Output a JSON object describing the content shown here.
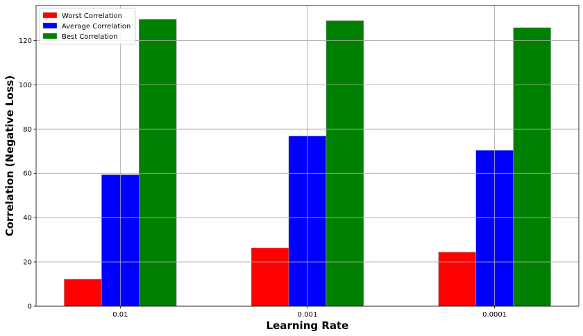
{
  "chart_data": {
    "type": "bar",
    "categories": [
      "0.01",
      "0.001",
      "0.0001"
    ],
    "series": [
      {
        "name": "Worst Correlation",
        "color": "#ff0000",
        "values": [
          12.2,
          26.3,
          24.4
        ]
      },
      {
        "name": "Average Correlation",
        "color": "#0000ff",
        "values": [
          59.4,
          76.9,
          70.4
        ]
      },
      {
        "name": "Best Correlation",
        "color": "#008000",
        "values": [
          129.6,
          129.0,
          125.8
        ]
      }
    ],
    "title": "",
    "xlabel": "Learning Rate",
    "ylabel": "Correlation (Negative Loss)",
    "ylim": [
      0,
      135.8
    ],
    "yticks": [
      0,
      20,
      40,
      60,
      80,
      100,
      120
    ],
    "grid": true,
    "legend_position": "top-left"
  }
}
